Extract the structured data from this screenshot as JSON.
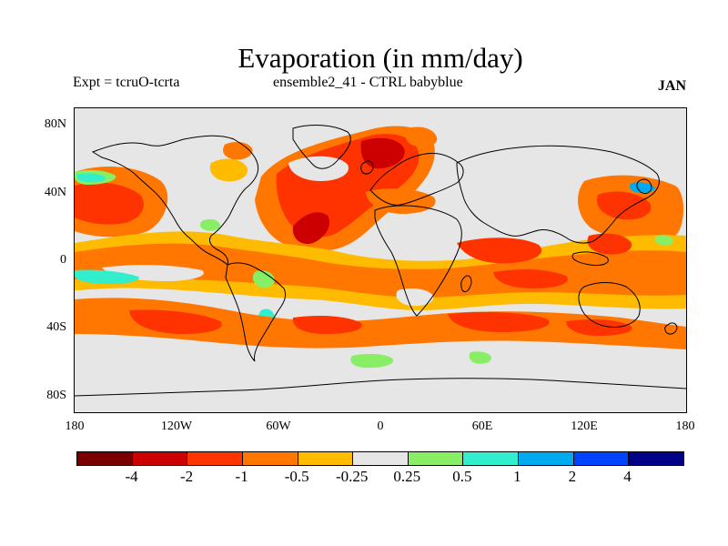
{
  "title": "Evaporation (in mm/day)",
  "subtitle_left": "Expt = tcruO-tcrta",
  "subtitle_center": "ensemble2_41 - CTRL babyblue",
  "subtitle_right": "JAN",
  "y_ticks": [
    "80N",
    "40N",
    "0",
    "40S",
    "80S"
  ],
  "x_ticks": [
    "180",
    "120W",
    "60W",
    "0",
    "60E",
    "120E",
    "180"
  ],
  "colorbar": {
    "colors": [
      "#7a0000",
      "#cc0000",
      "#ff3300",
      "#ff7700",
      "#ffbb00",
      "#e6e6e6",
      "#88ee66",
      "#33eecc",
      "#00aaee",
      "#0044ff",
      "#000088"
    ],
    "labels": [
      "-4",
      "-2",
      "-1",
      "-0.5",
      "-0.25",
      "0.25",
      "0.5",
      "1",
      "2",
      "4"
    ]
  },
  "palette": {
    "background": "#e6e6e6",
    "deep_red": "#cc0000",
    "red": "#ff3300",
    "orange": "#ff7700",
    "yellow": "#ffbb00",
    "green": "#88ee66",
    "cyan": "#33eecc",
    "blue": "#00aaee",
    "coast": "#000000"
  }
}
